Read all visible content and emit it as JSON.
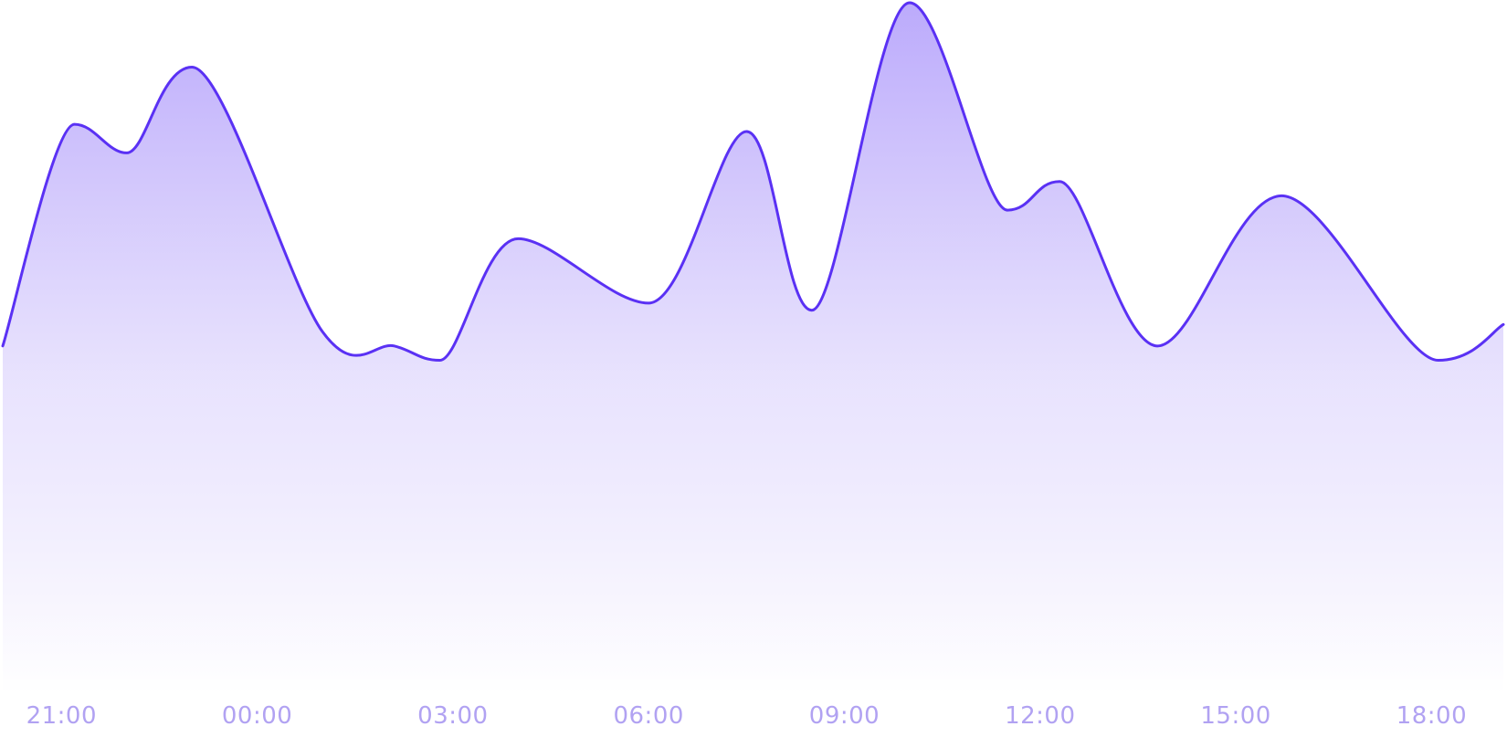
{
  "chart_data": {
    "type": "area",
    "title": "",
    "xlabel": "",
    "ylabel": "",
    "x_tick_labels": [
      "21:00",
      "00:00",
      "03:00",
      "06:00",
      "09:00",
      "12:00",
      "15:00",
      "18:00"
    ],
    "x_tick_positions": [
      0.5,
      3.5,
      6.5,
      9.5,
      12.5,
      15.5,
      18.5,
      21.5
    ],
    "xlim": [
      -0.4,
      22.6
    ],
    "ylim": [
      0,
      100
    ],
    "grid": false,
    "legend": "none",
    "series": [
      {
        "points": [
          [
            -0.4,
            52
          ],
          [
            0.7,
            83
          ],
          [
            1.5,
            79
          ],
          [
            2.5,
            91
          ],
          [
            4.5,
            54
          ],
          [
            5.6,
            52
          ],
          [
            6.3,
            50
          ],
          [
            7.5,
            67
          ],
          [
            9.5,
            58
          ],
          [
            11.0,
            82
          ],
          [
            12.0,
            57
          ],
          [
            13.5,
            100
          ],
          [
            15.0,
            71
          ],
          [
            15.8,
            75
          ],
          [
            17.3,
            52
          ],
          [
            19.2,
            73
          ],
          [
            21.6,
            50
          ],
          [
            22.6,
            55
          ]
        ]
      }
    ],
    "colors": {
      "line": "#5a31f4",
      "fill_top": "#b8a6fb",
      "fill_bottom": "#ffffff",
      "tick_label": "#b1a2f2"
    }
  }
}
